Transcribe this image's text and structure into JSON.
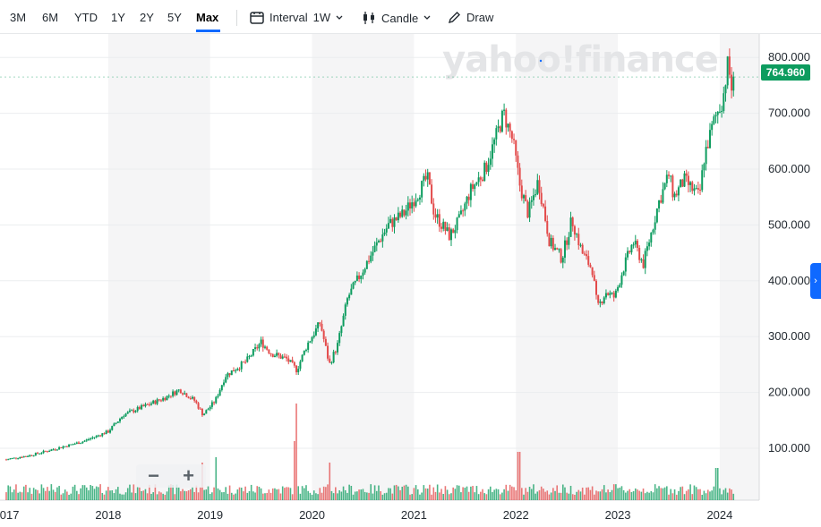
{
  "toolbar": {
    "ranges": [
      "3M",
      "6M",
      "YTD",
      "1Y",
      "2Y",
      "5Y",
      "Max"
    ],
    "active_range": "Max",
    "interval_label": "Interval",
    "interval_value": "1W",
    "chart_type_label": "Candle",
    "draw_label": "Draw"
  },
  "watermark": "yahoo!finance",
  "colors": {
    "up": "#0d9c5f",
    "down": "#e34a4a",
    "accent": "#0f69ff",
    "badge": "#0d9c5f"
  },
  "current_price": "764.960",
  "zoom": {
    "minus": "−",
    "plus": "+"
  },
  "chart_data": {
    "type": "candlestick",
    "interval": "1W",
    "y_ticks": [
      "100.000",
      "200.000",
      "300.000",
      "400.000",
      "500.000",
      "600.000",
      "700.000",
      "800.000"
    ],
    "ylim": [
      0,
      820
    ],
    "x_ticks": [
      "2017",
      "2018",
      "2019",
      "2020",
      "2021",
      "2022",
      "2023",
      "2024"
    ],
    "xlim": [
      2017.0,
      2024.15
    ],
    "last_price": 764.96,
    "price_path": [
      [
        2017.0,
        80
      ],
      [
        2017.25,
        88
      ],
      [
        2017.5,
        100
      ],
      [
        2017.75,
        112
      ],
      [
        2018.0,
        130
      ],
      [
        2018.15,
        160
      ],
      [
        2018.35,
        175
      ],
      [
        2018.55,
        190
      ],
      [
        2018.7,
        205
      ],
      [
        2018.85,
        185
      ],
      [
        2018.93,
        160
      ],
      [
        2019.05,
        185
      ],
      [
        2019.15,
        230
      ],
      [
        2019.35,
        255
      ],
      [
        2019.5,
        290
      ],
      [
        2019.6,
        270
      ],
      [
        2019.75,
        260
      ],
      [
        2019.85,
        240
      ],
      [
        2019.95,
        285
      ],
      [
        2020.08,
        325
      ],
      [
        2020.17,
        250
      ],
      [
        2020.25,
        285
      ],
      [
        2020.35,
        370
      ],
      [
        2020.5,
        420
      ],
      [
        2020.65,
        470
      ],
      [
        2020.75,
        500
      ],
      [
        2020.9,
        520
      ],
      [
        2021.05,
        560
      ],
      [
        2021.13,
        585
      ],
      [
        2021.2,
        520
      ],
      [
        2021.35,
        480
      ],
      [
        2021.45,
        510
      ],
      [
        2021.55,
        560
      ],
      [
        2021.7,
        600
      ],
      [
        2021.8,
        655
      ],
      [
        2021.88,
        700
      ],
      [
        2021.97,
        650
      ],
      [
        2022.04,
        570
      ],
      [
        2022.12,
        520
      ],
      [
        2022.22,
        580
      ],
      [
        2022.33,
        470
      ],
      [
        2022.45,
        440
      ],
      [
        2022.55,
        510
      ],
      [
        2022.65,
        450
      ],
      [
        2022.75,
        420
      ],
      [
        2022.8,
        350
      ],
      [
        2022.88,
        380
      ],
      [
        2022.97,
        370
      ],
      [
        2023.05,
        420
      ],
      [
        2023.15,
        470
      ],
      [
        2023.25,
        430
      ],
      [
        2023.32,
        480
      ],
      [
        2023.4,
        540
      ],
      [
        2023.5,
        590
      ],
      [
        2023.55,
        550
      ],
      [
        2023.65,
        580
      ],
      [
        2023.75,
        560
      ],
      [
        2023.8,
        550
      ],
      [
        2023.85,
        625
      ],
      [
        2023.95,
        690
      ],
      [
        2024.03,
        725
      ],
      [
        2024.08,
        790
      ],
      [
        2024.12,
        740
      ],
      [
        2024.15,
        765
      ]
    ],
    "volume_spikes": [
      [
        2019.82,
        0.55
      ],
      [
        2019.85,
        0.9
      ],
      [
        2018.92,
        0.35
      ],
      [
        2019.05,
        0.4
      ],
      [
        2022.03,
        0.45
      ],
      [
        2020.17,
        0.35
      ],
      [
        2023.97,
        0.3
      ]
    ]
  }
}
